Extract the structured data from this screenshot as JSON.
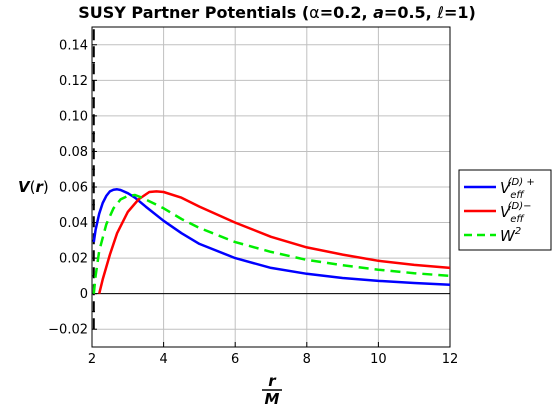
{
  "chart_data": {
    "type": "line",
    "title": "SUSY Partner Potentials (α=0.2, a=0.5, ℓ=1)",
    "title_parts": [
      "SUSY Partner Potentials (",
      "α",
      "=0.2, ",
      "a",
      "=0.5, ",
      "ℓ",
      "=1)"
    ],
    "xlabel_num": "r",
    "xlabel_den": "M",
    "ylabel_main": "V",
    "ylabel_paren_open": "(",
    "ylabel_var": "r",
    "ylabel_paren_close": ")",
    "xlim": [
      2,
      12
    ],
    "ylim": [
      -0.03,
      0.15
    ],
    "x_ticks": [
      2,
      4,
      6,
      8,
      10,
      12
    ],
    "y_ticks": [
      -0.02,
      0,
      0.02,
      0.04,
      0.06,
      0.08,
      0.1,
      0.12,
      0.14
    ],
    "y_tick_labels": [
      "−0.02",
      "0",
      "0.02",
      "0.04",
      "0.06",
      "0.08",
      "0.10",
      "0.12",
      "0.14"
    ],
    "grid": true,
    "legend_position": "right",
    "horizon_line": {
      "x": 2.05,
      "y_range": [
        -0.02,
        0.15
      ],
      "style": "dashed",
      "color": "#000000"
    },
    "series": [
      {
        "legend_main": "V",
        "legend_sub": "eff",
        "legend_sup": "(D) +",
        "color": "#0000ff",
        "style": "solid",
        "x": [
          2.05,
          2.1,
          2.2,
          2.3,
          2.4,
          2.5,
          2.6,
          2.7,
          2.8,
          3.0,
          3.2,
          3.5,
          4.0,
          4.5,
          5.0,
          6.0,
          7.0,
          8.0,
          9.0,
          10.0,
          11.0,
          12.0
        ],
        "y": [
          0.029,
          0.036,
          0.045,
          0.051,
          0.055,
          0.0575,
          0.0585,
          0.0587,
          0.0583,
          0.0565,
          0.054,
          0.049,
          0.041,
          0.034,
          0.028,
          0.02,
          0.0145,
          0.0112,
          0.0088,
          0.0072,
          0.006,
          0.005
        ]
      },
      {
        "legend_main": "V",
        "legend_sub": "eff",
        "legend_sup": "(D)−",
        "color": "#ff0000",
        "style": "solid",
        "x": [
          2.2,
          2.3,
          2.5,
          2.7,
          3.0,
          3.3,
          3.6,
          3.8,
          4.0,
          4.5,
          5.0,
          6.0,
          7.0,
          8.0,
          9.0,
          10.0,
          11.0,
          12.0
        ],
        "y": [
          0.0,
          0.008,
          0.022,
          0.034,
          0.046,
          0.053,
          0.0572,
          0.0575,
          0.0572,
          0.054,
          0.049,
          0.04,
          0.032,
          0.026,
          0.022,
          0.0185,
          0.0162,
          0.0145
        ]
      },
      {
        "legend_main": "W",
        "legend_sub": "",
        "legend_sup": "2",
        "color": "#00ee00",
        "style": "dashed",
        "x": [
          2.05,
          2.1,
          2.2,
          2.4,
          2.6,
          2.8,
          3.0,
          3.2,
          3.4,
          3.6,
          4.0,
          4.5,
          5.0,
          6.0,
          7.0,
          8.0,
          9.0,
          10.0,
          11.0,
          12.0
        ],
        "y": [
          0.0,
          0.01,
          0.024,
          0.039,
          0.048,
          0.053,
          0.055,
          0.0555,
          0.054,
          0.052,
          0.048,
          0.042,
          0.037,
          0.029,
          0.0235,
          0.019,
          0.016,
          0.0135,
          0.0115,
          0.01
        ]
      }
    ]
  }
}
